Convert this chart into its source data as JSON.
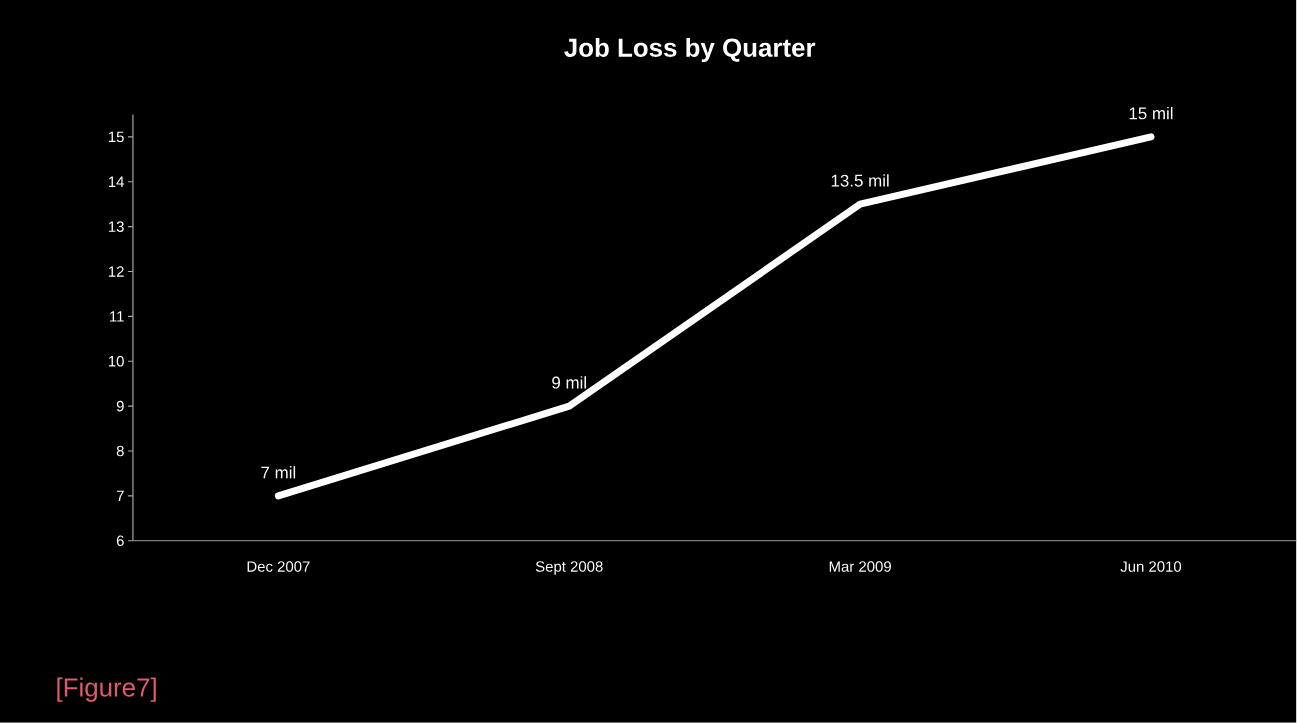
{
  "chart_data": {
    "type": "line",
    "title": "Job Loss by Quarter",
    "categories": [
      "Dec 2007",
      "Sept 2008",
      "Mar 2009",
      "Jun 2010"
    ],
    "values": [
      7,
      9,
      13.5,
      15
    ],
    "color": "#ffffff",
    "value_labels": [
      "7 mil",
      "9 mil",
      "13.5 mil",
      "15 mil"
    ],
    "ylim": [
      6,
      15.5
    ],
    "yticks": [
      6,
      7,
      8,
      9,
      10,
      11,
      12,
      13,
      14,
      15
    ],
    "annotations": [
      "[Figure7]"
    ]
  }
}
